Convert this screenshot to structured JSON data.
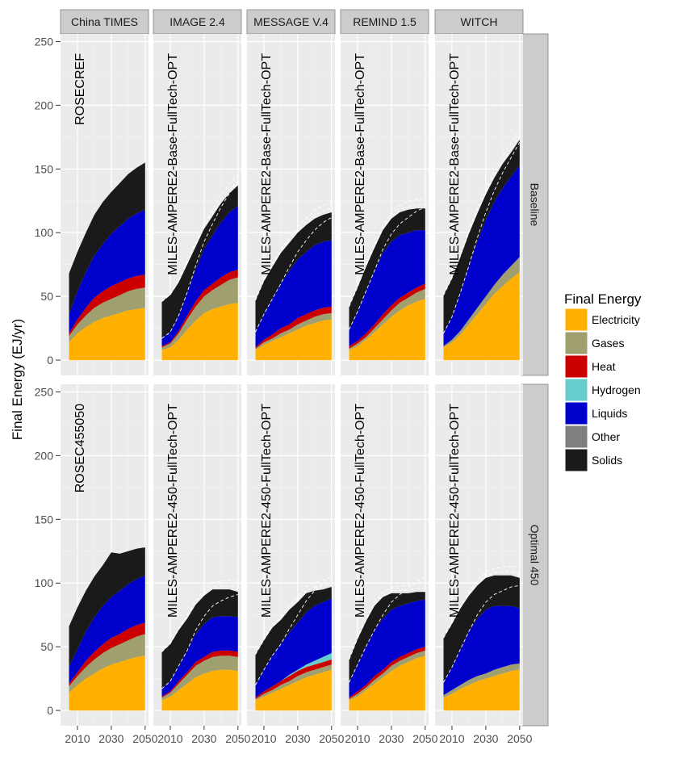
{
  "chart_data": {
    "type": "area",
    "subtype": "stacked area, faceted grid",
    "ylabel": "Final Energy (EJ/yr)",
    "ylim": [
      0,
      250
    ],
    "y_ticks": [
      0,
      50,
      100,
      150,
      200,
      250
    ],
    "x_ticks": [
      2010,
      2030,
      2050
    ],
    "x": [
      2005,
      2010,
      2015,
      2020,
      2025,
      2030,
      2035,
      2040,
      2045,
      2050
    ],
    "grid": true,
    "legend": {
      "title": "Final Energy",
      "position": "right",
      "entries": [
        {
          "name": "Electricity",
          "color": "#FFB000"
        },
        {
          "name": "Gases",
          "color": "#9F9F6F"
        },
        {
          "name": "Heat",
          "color": "#CC0000"
        },
        {
          "name": "Hydrogen",
          "color": "#66CCCC"
        },
        {
          "name": "Liquids",
          "color": "#0000CC"
        },
        {
          "name": "Other",
          "color": "#7F7F7F"
        },
        {
          "name": "Solids",
          "color": "#1A1A1A"
        }
      ]
    },
    "models": [
      "China TIMES",
      "IMAGE 2.4",
      "MESSAGE V.4",
      "REMIND 1.5",
      "WITCH"
    ],
    "rows": [
      "Baseline",
      "Optimal 450"
    ],
    "panels": [
      {
        "row": "Baseline",
        "model": "China TIMES",
        "scenario": "ROSECREF",
        "series": {
          "Electricity": [
            14,
            21,
            26,
            30,
            33,
            35,
            37,
            39,
            40,
            41
          ],
          "Gases": [
            5,
            7,
            9,
            11,
            12,
            13,
            14,
            15,
            16,
            16
          ],
          "Heat": [
            2,
            4,
            6,
            8,
            9,
            10,
            10,
            10,
            10,
            10
          ],
          "Hydrogen": [
            0,
            0,
            0,
            0,
            0,
            0,
            0,
            0,
            0,
            0
          ],
          "Liquids": [
            15,
            22,
            28,
            33,
            37,
            41,
            44,
            47,
            49,
            51
          ],
          "Other": [
            0,
            0,
            0,
            0,
            0,
            0,
            0,
            0,
            0,
            0
          ],
          "Solids": [
            32,
            31,
            31,
            32,
            33,
            33,
            34,
            35,
            36,
            37
          ]
        }
      },
      {
        "row": "Baseline",
        "model": "IMAGE 2.4",
        "scenario": "MILES-AMPERE2-Base-FullTech-OPT",
        "series": {
          "Electricity": [
            8,
            10,
            16,
            24,
            31,
            37,
            40,
            42,
            44,
            45
          ],
          "Gases": [
            2,
            3,
            5,
            8,
            11,
            13,
            15,
            17,
            19,
            20
          ],
          "Heat": [
            1,
            1,
            2,
            3,
            4,
            5,
            5,
            6,
            6,
            6
          ],
          "Hydrogen": [
            0,
            0,
            0,
            0,
            0,
            0,
            0,
            0,
            0,
            0
          ],
          "Liquids": [
            6,
            8,
            12,
            18,
            25,
            32,
            38,
            43,
            47,
            50
          ],
          "Other": [
            0,
            0,
            0,
            0,
            0,
            0,
            0,
            0,
            0,
            0
          ],
          "Solids": [
            29,
            29,
            26,
            22,
            18,
            16,
            15,
            15,
            15,
            16
          ]
        }
      },
      {
        "row": "Baseline",
        "model": "MESSAGE V.4",
        "scenario": "MILES-AMPERE2-Base-FullTech-OPT",
        "series": {
          "Electricity": [
            8,
            12,
            15,
            18,
            21,
            24,
            27,
            29,
            31,
            32
          ],
          "Gases": [
            1,
            2,
            2,
            3,
            3,
            4,
            4,
            5,
            5,
            5
          ],
          "Heat": [
            1,
            2,
            3,
            4,
            4,
            5,
            5,
            5,
            5,
            5
          ],
          "Hydrogen": [
            0,
            0,
            0,
            0,
            0,
            0,
            0,
            0,
            0,
            0
          ],
          "Liquids": [
            12,
            20,
            28,
            35,
            42,
            46,
            49,
            51,
            52,
            52
          ],
          "Other": [
            0,
            0,
            0,
            0,
            0,
            0,
            0,
            0,
            0,
            0
          ],
          "Solids": [
            25,
            26,
            25,
            24,
            22,
            21,
            21,
            21,
            21,
            22
          ]
        }
      },
      {
        "row": "Baseline",
        "model": "REMIND 1.5",
        "scenario": "MILES-AMPERE2-Base-FullTech-OPT",
        "series": {
          "Electricity": [
            8,
            11,
            16,
            22,
            28,
            34,
            39,
            43,
            46,
            48
          ],
          "Gases": [
            1,
            2,
            2,
            3,
            4,
            5,
            6,
            6,
            7,
            8
          ],
          "Heat": [
            2,
            2,
            3,
            3,
            4,
            4,
            4,
            4,
            4,
            4
          ],
          "Hydrogen": [
            0,
            0,
            0,
            0,
            0,
            0,
            0,
            0,
            0,
            0
          ],
          "Liquids": [
            13,
            23,
            33,
            42,
            48,
            50,
            49,
            47,
            45,
            42
          ],
          "Other": [
            0,
            0,
            0,
            0,
            0,
            0,
            0,
            0,
            0,
            0
          ],
          "Solids": [
            18,
            19,
            19,
            18,
            18,
            18,
            18,
            18,
            17,
            17
          ]
        }
      },
      {
        "row": "Baseline",
        "model": "WITCH",
        "scenario": "MILES-AMPERE2-Base-FullTech-OPT",
        "series": {
          "Electricity": [
            10,
            14,
            20,
            28,
            36,
            44,
            52,
            58,
            64,
            69
          ],
          "Gases": [
            1,
            2,
            3,
            4,
            5,
            6,
            7,
            9,
            10,
            12
          ],
          "Heat": [
            0,
            0,
            0,
            0,
            0,
            0,
            0,
            0,
            0,
            0
          ],
          "Hydrogen": [
            0,
            0,
            0,
            0,
            0,
            0,
            0,
            0,
            0,
            0
          ],
          "Liquids": [
            10,
            18,
            30,
            42,
            52,
            60,
            65,
            68,
            70,
            72
          ],
          "Other": [
            0,
            0,
            0,
            0,
            0,
            0,
            0,
            0,
            0,
            0
          ],
          "Solids": [
            30,
            30,
            28,
            25,
            22,
            20,
            19,
            19,
            19,
            20
          ]
        }
      },
      {
        "row": "Optimal 450",
        "model": "China TIMES",
        "scenario": "ROSEC455050",
        "series": {
          "Electricity": [
            14,
            20,
            25,
            29,
            33,
            36,
            38,
            40,
            42,
            43
          ],
          "Gases": [
            5,
            7,
            9,
            11,
            12,
            13,
            14,
            15,
            16,
            17
          ],
          "Heat": [
            2,
            3,
            5,
            6,
            7,
            8,
            8,
            9,
            9,
            9
          ],
          "Hydrogen": [
            0,
            0,
            0,
            0,
            0,
            0,
            0,
            0,
            0,
            0
          ],
          "Liquids": [
            13,
            18,
            23,
            27,
            30,
            32,
            34,
            35,
            36,
            37
          ],
          "Other": [
            0,
            0,
            0,
            0,
            0,
            0,
            0,
            0,
            0,
            0
          ],
          "Solids": [
            32,
            33,
            32,
            32,
            32,
            35,
            29,
            26,
            24,
            22
          ]
        }
      },
      {
        "row": "Optimal 450",
        "model": "IMAGE 2.4",
        "scenario": "MILES-AMPERE2-450-FullTech-OPT",
        "series": {
          "Electricity": [
            8,
            11,
            16,
            21,
            26,
            29,
            31,
            32,
            32,
            31
          ],
          "Gases": [
            2,
            3,
            5,
            7,
            9,
            10,
            11,
            11,
            11,
            11
          ],
          "Heat": [
            1,
            1,
            2,
            2,
            3,
            3,
            4,
            4,
            4,
            4
          ],
          "Hydrogen": [
            0,
            0,
            0,
            0,
            0,
            0,
            0,
            0,
            0,
            0
          ],
          "Liquids": [
            6,
            8,
            12,
            17,
            22,
            26,
            27,
            27,
            27,
            27
          ],
          "Other": [
            0,
            0,
            0,
            0,
            0,
            0,
            0,
            0,
            0,
            0
          ],
          "Solids": [
            29,
            29,
            28,
            25,
            23,
            22,
            22,
            21,
            21,
            20
          ]
        }
      },
      {
        "row": "Optimal 450",
        "model": "MESSAGE V.4",
        "scenario": "MILES-AMPERE2-450-FullTech-OPT",
        "series": {
          "Electricity": [
            8,
            11,
            14,
            17,
            20,
            23,
            26,
            28,
            30,
            32
          ],
          "Gases": [
            1,
            2,
            2,
            3,
            3,
            4,
            4,
            4,
            4,
            4
          ],
          "Heat": [
            1,
            2,
            3,
            3,
            4,
            4,
            4,
            4,
            4,
            4
          ],
          "Hydrogen": [
            0,
            0,
            0,
            0,
            1,
            1,
            2,
            3,
            4,
            5
          ],
          "Liquids": [
            10,
            17,
            24,
            29,
            33,
            37,
            41,
            43,
            43,
            43
          ],
          "Other": [
            0,
            0,
            0,
            0,
            0,
            0,
            0,
            0,
            0,
            0
          ],
          "Solids": [
            24,
            23,
            22,
            19,
            18,
            16,
            15,
            12,
            10,
            9
          ]
        }
      },
      {
        "row": "Optimal 450",
        "model": "REMIND 1.5",
        "scenario": "MILES-AMPERE2-450-FullTech-OPT",
        "series": {
          "Electricity": [
            8,
            11,
            16,
            21,
            26,
            31,
            35,
            38,
            41,
            43
          ],
          "Gases": [
            1,
            2,
            2,
            3,
            3,
            4,
            4,
            4,
            4,
            4
          ],
          "Heat": [
            1,
            2,
            2,
            3,
            3,
            3,
            3,
            3,
            3,
            3
          ],
          "Hydrogen": [
            0,
            0,
            0,
            0,
            0,
            0,
            0,
            0,
            0,
            0
          ],
          "Liquids": [
            12,
            21,
            30,
            36,
            40,
            41,
            40,
            39,
            38,
            37
          ],
          "Other": [
            0,
            0,
            0,
            0,
            0,
            0,
            0,
            0,
            0,
            0
          ],
          "Solids": [
            18,
            20,
            20,
            19,
            17,
            13,
            10,
            8,
            7,
            6
          ]
        }
      },
      {
        "row": "Optimal 450",
        "model": "WITCH",
        "scenario": "MILES-AMPERE2-450-FullTech-OPT",
        "series": {
          "Electricity": [
            10,
            13,
            17,
            20,
            23,
            25,
            27,
            29,
            31,
            32
          ],
          "Gases": [
            2,
            3,
            3,
            4,
            4,
            4,
            5,
            5,
            5,
            5
          ],
          "Heat": [
            0,
            0,
            0,
            0,
            0,
            0,
            0,
            0,
            0,
            0
          ],
          "Hydrogen": [
            0,
            0,
            0,
            0,
            0,
            0,
            0,
            0,
            0,
            0
          ],
          "Liquids": [
            10,
            18,
            28,
            38,
            45,
            50,
            50,
            48,
            46,
            43
          ],
          "Other": [
            0,
            0,
            0,
            0,
            0,
            0,
            0,
            0,
            0,
            0
          ],
          "Solids": [
            35,
            34,
            32,
            28,
            26,
            25,
            24,
            24,
            24,
            24
          ]
        }
      }
    ]
  }
}
